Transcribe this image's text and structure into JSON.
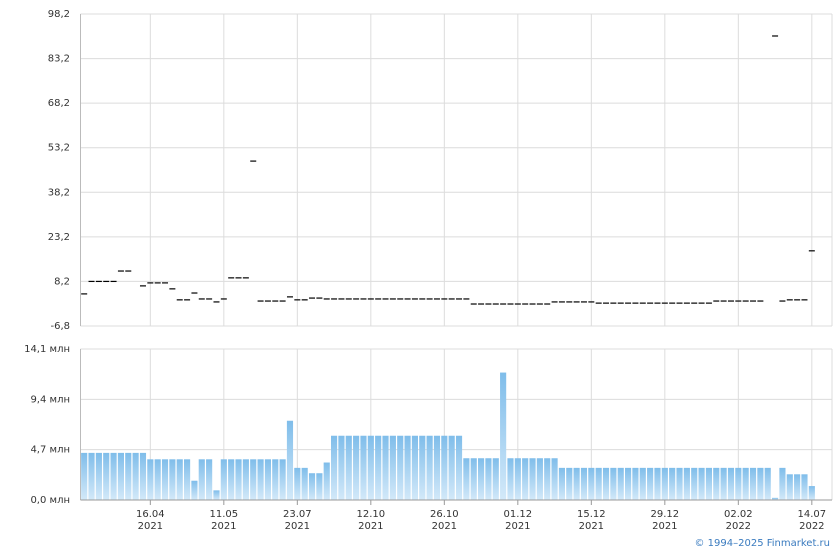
{
  "chart_data": [
    {
      "type": "price",
      "color": "#000000",
      "ylim": [
        -6.8,
        98.2
      ],
      "yticks": [
        {
          "value": -6.8,
          "label": "-6,8"
        },
        {
          "value": 8.2,
          "label": "8,2"
        },
        {
          "value": 23.2,
          "label": "23,2"
        },
        {
          "value": 38.2,
          "label": "38,2"
        },
        {
          "value": 53.2,
          "label": "53,2"
        },
        {
          "value": 68.2,
          "label": "68,2"
        },
        {
          "value": 83.2,
          "label": "83,2"
        },
        {
          "value": 98.2,
          "label": "98,2"
        }
      ],
      "values": [
        4.0,
        8.2,
        8.2,
        8.2,
        8.2,
        11.7,
        11.7,
        null,
        6.7,
        7.7,
        7.7,
        7.7,
        5.7,
        2.0,
        2.0,
        4.3,
        2.3,
        2.3,
        1.3,
        2.3,
        9.4,
        9.4,
        9.4,
        48.7,
        1.6,
        1.6,
        1.6,
        1.6,
        3.0,
        2.0,
        2.0,
        2.6,
        2.6,
        2.3,
        2.3,
        2.3,
        2.3,
        2.3,
        2.3,
        2.3,
        2.3,
        2.3,
        2.3,
        2.3,
        2.3,
        2.3,
        2.3,
        2.3,
        2.3,
        2.3,
        2.3,
        2.3,
        2.3,
        0.6,
        0.6,
        0.6,
        0.6,
        0.6,
        0.6,
        0.6,
        0.6,
        0.6,
        0.6,
        0.6,
        1.3,
        1.3,
        1.3,
        1.3,
        1.3,
        1.3,
        0.9,
        0.9,
        0.9,
        0.9,
        0.9,
        0.9,
        0.9,
        0.9,
        0.9,
        0.9,
        0.9,
        0.9,
        0.9,
        0.9,
        0.9,
        0.9,
        1.6,
        1.6,
        1.6,
        1.6,
        1.6,
        1.6,
        1.6,
        null,
        90.8,
        1.6,
        2.0,
        2.0,
        2.0,
        18.5
      ],
      "grid": true
    },
    {
      "type": "bar",
      "color": "#8cc6ef",
      "ylim": [
        0.0,
        14.1
      ],
      "yticks": [
        {
          "value": 0.0,
          "label": "0,0 млн"
        },
        {
          "value": 4.7,
          "label": "4,7 млн"
        },
        {
          "value": 9.4,
          "label": "9,4 млн"
        },
        {
          "value": 14.1,
          "label": "14,1 млн"
        }
      ],
      "categories": [
        null,
        null,
        null,
        null,
        null,
        null,
        null,
        null,
        null,
        "16.04",
        null,
        null,
        null,
        null,
        null,
        null,
        null,
        null,
        null,
        "11.05",
        null,
        null,
        null,
        null,
        null,
        null,
        null,
        null,
        null,
        "23.07",
        null,
        null,
        null,
        null,
        null,
        null,
        null,
        null,
        null,
        "12.10",
        null,
        null,
        null,
        null,
        null,
        null,
        null,
        null,
        null,
        "26.10",
        null,
        null,
        null,
        null,
        null,
        null,
        null,
        null,
        null,
        "01.12",
        null,
        null,
        null,
        null,
        null,
        null,
        null,
        null,
        null,
        "15.12",
        null,
        null,
        null,
        null,
        null,
        null,
        null,
        null,
        null,
        "29.12",
        null,
        null,
        null,
        null,
        null,
        null,
        null,
        null,
        null,
        "02.02",
        null,
        null,
        null,
        null,
        null,
        null,
        null,
        null,
        null,
        "14.07"
      ],
      "category_years": [
        null,
        null,
        null,
        null,
        null,
        null,
        null,
        null,
        null,
        "2021",
        null,
        null,
        null,
        null,
        null,
        null,
        null,
        null,
        null,
        "2021",
        null,
        null,
        null,
        null,
        null,
        null,
        null,
        null,
        null,
        "2021",
        null,
        null,
        null,
        null,
        null,
        null,
        null,
        null,
        null,
        "2021",
        null,
        null,
        null,
        null,
        null,
        null,
        null,
        null,
        null,
        "2021",
        null,
        null,
        null,
        null,
        null,
        null,
        null,
        null,
        null,
        "2021",
        null,
        null,
        null,
        null,
        null,
        null,
        null,
        null,
        null,
        "2021",
        null,
        null,
        null,
        null,
        null,
        null,
        null,
        null,
        null,
        "2021",
        null,
        null,
        null,
        null,
        null,
        null,
        null,
        null,
        null,
        "2022",
        null,
        null,
        null,
        null,
        null,
        null,
        null,
        null,
        null,
        "2022"
      ],
      "values": [
        4.4,
        4.4,
        4.4,
        4.4,
        4.4,
        4.4,
        4.4,
        4.4,
        4.4,
        3.8,
        3.8,
        3.8,
        3.8,
        3.8,
        3.8,
        1.8,
        3.8,
        3.8,
        0.9,
        3.8,
        3.8,
        3.8,
        3.8,
        3.8,
        3.8,
        3.8,
        3.8,
        3.8,
        7.4,
        3.0,
        3.0,
        2.5,
        2.5,
        3.5,
        6.0,
        6.0,
        6.0,
        6.0,
        6.0,
        6.0,
        6.0,
        6.0,
        6.0,
        6.0,
        6.0,
        6.0,
        6.0,
        6.0,
        6.0,
        6.0,
        6.0,
        6.0,
        3.9,
        3.9,
        3.9,
        3.9,
        3.9,
        11.9,
        3.9,
        3.9,
        3.9,
        3.9,
        3.9,
        3.9,
        3.9,
        3.0,
        3.0,
        3.0,
        3.0,
        3.0,
        3.0,
        3.0,
        3.0,
        3.0,
        3.0,
        3.0,
        3.0,
        3.0,
        3.0,
        3.0,
        3.0,
        3.0,
        3.0,
        3.0,
        3.0,
        3.0,
        3.0,
        3.0,
        3.0,
        3.0,
        3.0,
        3.0,
        3.0,
        3.0,
        0.2,
        3.0,
        2.4,
        2.4,
        2.4,
        1.3
      ],
      "grid": true
    }
  ],
  "footer": "© 1994–2025 Finmarket.ru"
}
